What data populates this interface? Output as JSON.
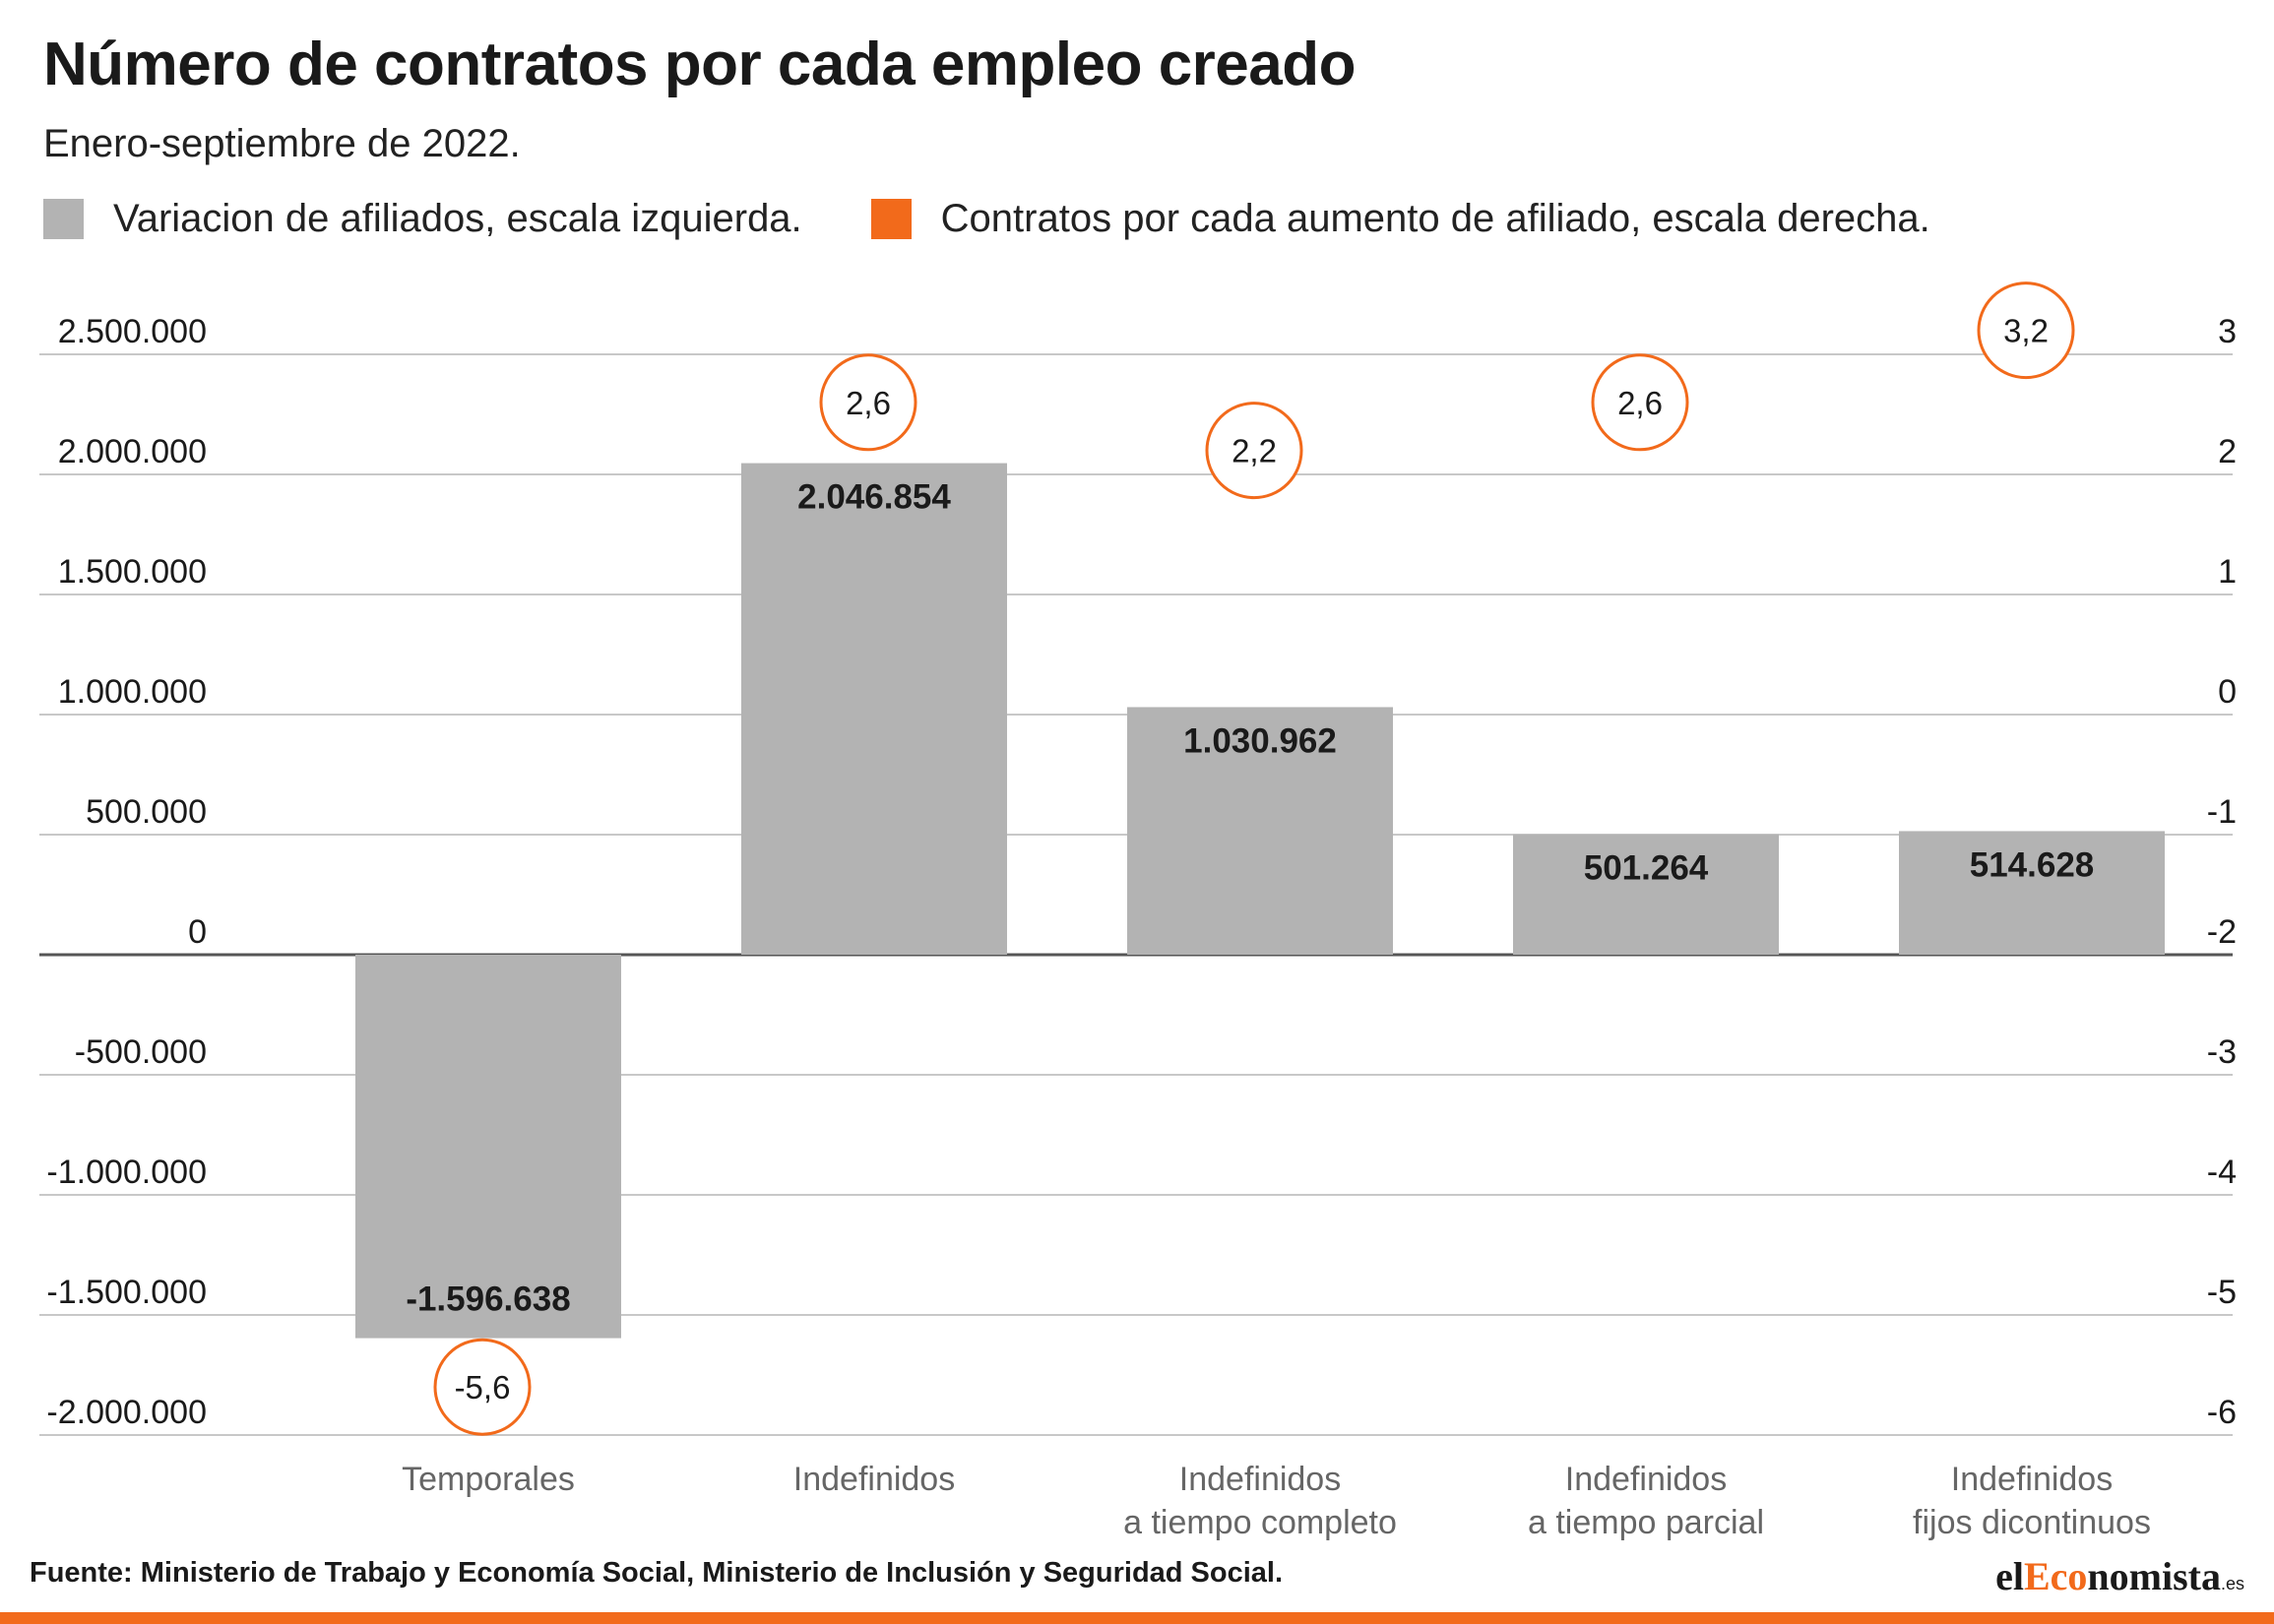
{
  "chart_data": {
    "type": "bar",
    "title": "Número de contratos por cada empleo creado",
    "subtitle": "Enero-septiembre de 2022.",
    "categories": [
      [
        "Temporales"
      ],
      [
        "Indefinidos"
      ],
      [
        "Indefinidos",
        "a tiempo completo"
      ],
      [
        "Indefinidos",
        "a tiempo parcial"
      ],
      [
        "Indefinidos",
        "fijos dicontinuos"
      ]
    ],
    "series": [
      {
        "name": "Variacion de afiliados, escala izquierda.",
        "axis": "left",
        "color": "#b3b3b3",
        "values": [
          -1596638,
          2046854,
          1030962,
          501264,
          514628
        ],
        "labels": [
          "-1.596.638",
          "2.046.854",
          "1.030.962",
          "501.264",
          "514.628"
        ]
      },
      {
        "name": "Contratos por cada aumento de afiliado, escala derecha.",
        "axis": "right",
        "color": "#f26a1b",
        "values": [
          -5.6,
          2.6,
          2.2,
          2.6,
          3.2
        ],
        "labels": [
          "-5,6",
          "2,6",
          "2,2",
          "2,6",
          "3,2"
        ]
      }
    ],
    "y_left": {
      "ylim": [
        -2000000,
        2500000
      ],
      "ticks": [
        "2.500.000",
        "2.000.000",
        "1.500.000",
        "1.000.000",
        "500.000",
        "0",
        "-500.000",
        "-1.000.000",
        "-1.500.000",
        "-2.000.000"
      ]
    },
    "y_right": {
      "ylim": [
        -6,
        3
      ],
      "ticks": [
        "3",
        "2",
        "1",
        "0",
        "-1",
        "-2",
        "-3",
        "-4",
        "-5",
        "-6"
      ]
    },
    "grid": true,
    "legend_placement": "top-left"
  },
  "footer": {
    "source": "Fuente: Ministerio de Trabajo y Economía Social, Ministerio de Inclusión y Seguridad Social.",
    "logo_el": "el",
    "logo_eco": "Eco",
    "logo_nomista": "nomista",
    "logo_es": ".es"
  },
  "colors": {
    "accent": "#f26a1b",
    "bar": "#b3b3b3",
    "grid": "#c8c8c8",
    "axis_label": "#666666"
  }
}
